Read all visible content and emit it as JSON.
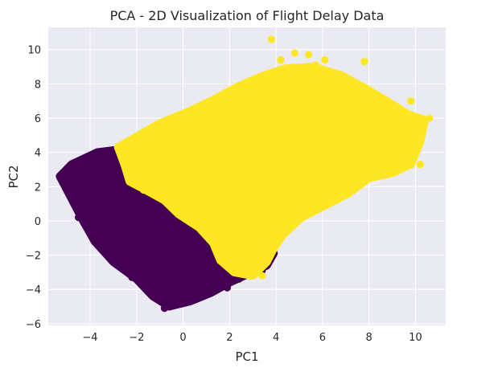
{
  "chart_data": {
    "type": "scatter",
    "title": "PCA - 2D Visualization of Flight Delay Data",
    "xlabel": "PC1",
    "ylabel": "PC2",
    "xlim": [
      -5.8,
      11.3
    ],
    "ylim": [
      -6.1,
      11.3
    ],
    "xticks": [
      -4,
      -2,
      0,
      2,
      4,
      6,
      8,
      10
    ],
    "yticks": [
      -6,
      -4,
      -2,
      0,
      2,
      4,
      6,
      8,
      10
    ],
    "xtick_labels": [
      "−4",
      "−2",
      "0",
      "2",
      "4",
      "6",
      "8",
      "10"
    ],
    "ytick_labels": [
      "−6",
      "−4",
      "−2",
      "0",
      "2",
      "4",
      "6",
      "8",
      "10"
    ],
    "grid": true,
    "background": "#eaeaf2",
    "series": [
      {
        "color": "#440154",
        "region_polygon": [
          [
            -5.3,
            2.6
          ],
          [
            -4.8,
            3.3
          ],
          [
            -3.7,
            4.0
          ],
          [
            -2.5,
            4.2
          ],
          [
            -1.3,
            4.6
          ],
          [
            -0.2,
            4.1
          ],
          [
            0.3,
            2.9
          ],
          [
            1.2,
            2.4
          ],
          [
            2.3,
            1.3
          ],
          [
            3.2,
            0.5
          ],
          [
            3.6,
            -0.8
          ],
          [
            3.9,
            -1.9
          ],
          [
            3.6,
            -2.6
          ],
          [
            2.8,
            -3.1
          ],
          [
            2.0,
            -3.6
          ],
          [
            1.2,
            -4.2
          ],
          [
            0.3,
            -4.7
          ],
          [
            -0.6,
            -5.0
          ],
          [
            -1.3,
            -4.4
          ],
          [
            -2.0,
            -3.4
          ],
          [
            -3.0,
            -2.4
          ],
          [
            -3.8,
            -1.2
          ],
          [
            -4.3,
            0.0
          ],
          [
            -4.8,
            1.3
          ]
        ],
        "points": [
          [
            -0.8,
            -5.1
          ],
          [
            -0.3,
            -4.9
          ],
          [
            0.3,
            -4.6
          ],
          [
            -4.9,
            2.5
          ],
          [
            -5.2,
            2.4
          ],
          [
            -4.5,
            0.2
          ],
          [
            -4.2,
            1.1
          ],
          [
            -3.8,
            -0.6
          ],
          [
            -3.1,
            -2.0
          ],
          [
            -2.2,
            -3.3
          ],
          [
            -1.5,
            4.3
          ],
          [
            -2.6,
            3.9
          ],
          [
            -3.6,
            3.8
          ],
          [
            1.9,
            -3.9
          ],
          [
            2.4,
            -3.4
          ],
          [
            3.4,
            -2.9
          ],
          [
            3.7,
            -1.6
          ],
          [
            3.1,
            0.2
          ],
          [
            2.0,
            1.0
          ],
          [
            1.1,
            1.7
          ],
          [
            -0.4,
            -0.6
          ],
          [
            0.8,
            -2.2
          ],
          [
            2.4,
            -0.3
          ]
        ]
      },
      {
        "color": "#fde725",
        "region_polygon": [
          [
            -2.8,
            4.3
          ],
          [
            -1.9,
            5.0
          ],
          [
            -1.0,
            5.7
          ],
          [
            0.1,
            6.3
          ],
          [
            1.2,
            7.0
          ],
          [
            2.3,
            7.8
          ],
          [
            3.3,
            8.4
          ],
          [
            4.4,
            8.9
          ],
          [
            5.6,
            9.0
          ],
          [
            6.8,
            8.5
          ],
          [
            7.9,
            7.7
          ],
          [
            9.0,
            6.8
          ],
          [
            9.7,
            6.2
          ],
          [
            10.4,
            5.9
          ],
          [
            10.2,
            4.6
          ],
          [
            9.8,
            3.3
          ],
          [
            9.0,
            2.8
          ],
          [
            8.0,
            2.5
          ],
          [
            7.1,
            1.6
          ],
          [
            6.1,
            0.9
          ],
          [
            5.1,
            0.2
          ],
          [
            4.3,
            -0.8
          ],
          [
            3.9,
            -1.6
          ],
          [
            3.6,
            -2.4
          ],
          [
            3.0,
            -3.2
          ],
          [
            2.2,
            -3.0
          ],
          [
            1.6,
            -2.3
          ],
          [
            1.3,
            -1.3
          ],
          [
            0.7,
            -0.4
          ],
          [
            -0.2,
            0.4
          ],
          [
            -0.8,
            1.2
          ],
          [
            -1.6,
            1.8
          ],
          [
            -2.3,
            2.3
          ],
          [
            -2.5,
            3.2
          ]
        ]
      }
    ],
    "yellow_points": [
      [
        3.8,
        10.6
      ],
      [
        4.8,
        9.8
      ],
      [
        5.4,
        9.7
      ],
      [
        4.2,
        9.4
      ],
      [
        6.1,
        9.4
      ],
      [
        7.8,
        9.3
      ],
      [
        5.7,
        9.1
      ],
      [
        9.8,
        7.0
      ],
      [
        10.6,
        6.0
      ],
      [
        10.1,
        4.4
      ],
      [
        9.6,
        3.8
      ],
      [
        10.2,
        3.3
      ],
      [
        9.2,
        2.9
      ],
      [
        7.6,
        2.5
      ],
      [
        -2.0,
        4.6
      ],
      [
        -1.4,
        3.5
      ],
      [
        -2.3,
        3.0
      ],
      [
        -1.7,
        1.8
      ],
      [
        -0.8,
        1.4
      ],
      [
        -0.1,
        0.4
      ],
      [
        0.8,
        -0.5
      ],
      [
        1.5,
        -1.9
      ],
      [
        2.0,
        -2.5
      ],
      [
        2.7,
        -3.1
      ],
      [
        3.4,
        -3.2
      ],
      [
        2.6,
        1.3
      ],
      [
        3.6,
        -0.6
      ],
      [
        -0.6,
        2.7
      ],
      [
        0.3,
        1.8
      ],
      [
        1.0,
        6.9
      ],
      [
        -0.4,
        6.0
      ],
      [
        2.3,
        7.5
      ]
    ]
  }
}
